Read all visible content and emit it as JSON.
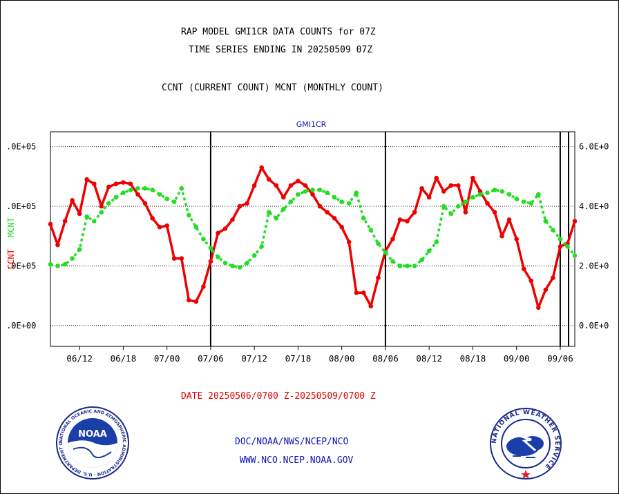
{
  "title_line1": "RAP MODEL GMI1CR DATA COUNTS for 07Z",
  "title_line2": "TIME SERIES ENDING IN 20250509 07Z",
  "subtitle": "CCNT (CURRENT COUNT) MCNT (MONTHLY COUNT)",
  "date_range": "DATE 20250506/0700 Z-20250509/0700 Z",
  "footer_line1": "DOC/NOAA/NWS/NCEP/NCO",
  "footer_line2": "WWW.NCO.NCEP.NOAA.GOV",
  "noaa_logo_text": "NOAA",
  "noaa_seal_text": "NATIONAL OCEANIC AND ATMOSPHERIC ADMINISTRATION · U.S. DEPARTMENT OF COMMERCE",
  "nws_seal_text": "NATIONAL WEATHER SERVICE",
  "colors": {
    "ccnt": "#ee0000",
    "mcnt": "#22dd22",
    "label_blue": "#1010c0",
    "date_red": "#e00000",
    "grid": "#000000"
  },
  "chart_data": {
    "type": "line",
    "title": "GMI1CR",
    "x_tick_labels": [
      "06/12",
      "06/18",
      "07/00",
      "07/06",
      "07/12",
      "07/18",
      "08/00",
      "08/06",
      "08/12",
      "08/18",
      "09/00",
      "09/06"
    ],
    "left_ylabel_ccnt": "CCNT",
    "left_ylabel_mcnt": "MCNT",
    "left_tick_labels": [
      ".0E+05",
      ".0E+05",
      ".0E+05",
      ".0E+00"
    ],
    "right_tick_labels": [
      "6.0E+0",
      "4.0E+0",
      "2.0E+0",
      "0.0E+0"
    ],
    "grid": true,
    "ylim": [
      -70000,
      650000
    ],
    "xlim": [
      2,
      74
    ],
    "day_dividers_hours": [
      24,
      48,
      72
    ],
    "series": [
      {
        "name": "CCNT",
        "x": [
          2,
          3,
          4,
          5,
          6,
          7,
          8,
          9,
          10,
          11,
          12,
          13,
          14,
          15,
          16,
          17,
          18,
          19,
          20,
          21,
          22,
          23,
          24,
          25,
          26,
          27,
          28,
          29,
          30,
          31,
          32,
          33,
          34,
          35,
          36,
          37,
          38,
          39,
          40,
          41,
          42,
          43,
          44,
          45,
          46,
          47,
          48,
          49,
          50,
          51,
          52,
          53,
          54,
          55,
          56,
          57,
          58,
          59,
          60,
          61,
          62,
          63,
          64,
          65,
          66,
          67,
          68,
          69,
          70,
          71,
          72,
          73,
          74
        ],
        "values": [
          340000,
          270000,
          350000,
          420000,
          375000,
          490000,
          475000,
          400000,
          465000,
          475000,
          480000,
          475000,
          440000,
          410000,
          360000,
          330000,
          335000,
          225000,
          225000,
          85000,
          80000,
          130000,
          215000,
          310000,
          325000,
          355000,
          400000,
          410000,
          470000,
          530000,
          490000,
          470000,
          430000,
          470000,
          485000,
          470000,
          440000,
          400000,
          380000,
          360000,
          330000,
          280000,
          110000,
          110000,
          65000,
          160000,
          250000,
          290000,
          355000,
          350000,
          380000,
          460000,
          430000,
          495000,
          450000,
          470000,
          470000,
          380000,
          495000,
          450000,
          410000,
          380000,
          300000,
          355000,
          290000,
          190000,
          150000,
          60000,
          120000,
          160000,
          265000,
          275000,
          350000
        ]
      },
      {
        "name": "MCNT",
        "x": [
          2,
          3,
          4,
          5,
          6,
          7,
          8,
          9,
          10,
          11,
          12,
          13,
          14,
          15,
          16,
          17,
          18,
          19,
          20,
          21,
          22,
          23,
          24,
          25,
          26,
          27,
          28,
          29,
          30,
          31,
          32,
          33,
          34,
          35,
          36,
          37,
          38,
          39,
          40,
          41,
          42,
          43,
          44,
          45,
          46,
          47,
          48,
          49,
          50,
          51,
          52,
          53,
          54,
          55,
          56,
          57,
          58,
          59,
          60,
          61,
          62,
          63,
          64,
          65,
          66,
          67,
          68,
          69,
          70,
          71,
          72,
          73,
          74
        ],
        "values": [
          205000,
          200000,
          205000,
          225000,
          255000,
          365000,
          350000,
          380000,
          410000,
          430000,
          445000,
          455000,
          460000,
          460000,
          455000,
          440000,
          425000,
          415000,
          460000,
          370000,
          330000,
          290000,
          260000,
          230000,
          210000,
          200000,
          195000,
          210000,
          235000,
          265000,
          380000,
          360000,
          390000,
          415000,
          440000,
          450000,
          455000,
          455000,
          445000,
          430000,
          415000,
          410000,
          445000,
          360000,
          320000,
          275000,
          245000,
          215000,
          200000,
          200000,
          200000,
          220000,
          250000,
          280000,
          400000,
          375000,
          400000,
          415000,
          430000,
          440000,
          445000,
          455000,
          450000,
          440000,
          425000,
          415000,
          410000,
          440000,
          350000,
          320000,
          290000,
          265000,
          235000
        ]
      }
    ]
  }
}
